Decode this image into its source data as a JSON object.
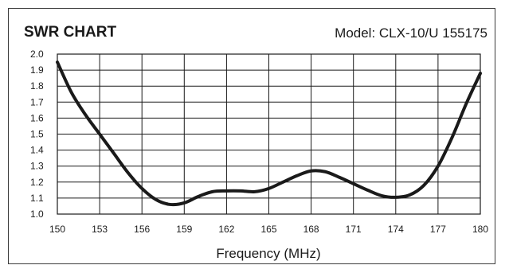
{
  "header": {
    "title": "SWR CHART",
    "model": "Model: CLX-10/U 155175"
  },
  "chart_data": {
    "type": "line",
    "title": "SWR CHART",
    "subtitle": "Model: CLX-10/U 155175",
    "xlabel": "Frequency (MHz)",
    "ylabel": "",
    "xlim": [
      150,
      180
    ],
    "ylim": [
      1.0,
      2.0
    ],
    "x_ticks": [
      150,
      153,
      156,
      159,
      162,
      165,
      168,
      171,
      174,
      177,
      180
    ],
    "y_ticks": [
      "1.0",
      "1.1",
      "1.2",
      "1.3",
      "1.4",
      "1.5",
      "1.6",
      "1.7",
      "1.8",
      "1.9",
      "2.0"
    ],
    "grid": true,
    "legend": "none",
    "series": [
      {
        "x": [
          150,
          151,
          152,
          153,
          154,
          155,
          156,
          157,
          158,
          159,
          160,
          161,
          162,
          163,
          164,
          165,
          166,
          167,
          168,
          169,
          170,
          171,
          172,
          173,
          174,
          175,
          176,
          177,
          178,
          179,
          180
        ],
        "y": [
          1.95,
          1.76,
          1.62,
          1.5,
          1.38,
          1.26,
          1.16,
          1.09,
          1.06,
          1.07,
          1.11,
          1.14,
          1.145,
          1.145,
          1.14,
          1.16,
          1.2,
          1.24,
          1.27,
          1.265,
          1.23,
          1.19,
          1.15,
          1.115,
          1.105,
          1.12,
          1.18,
          1.3,
          1.48,
          1.69,
          1.88
        ]
      }
    ],
    "colors": {
      "line": "#1a1a1a",
      "grid": "#1a1a1a"
    }
  }
}
